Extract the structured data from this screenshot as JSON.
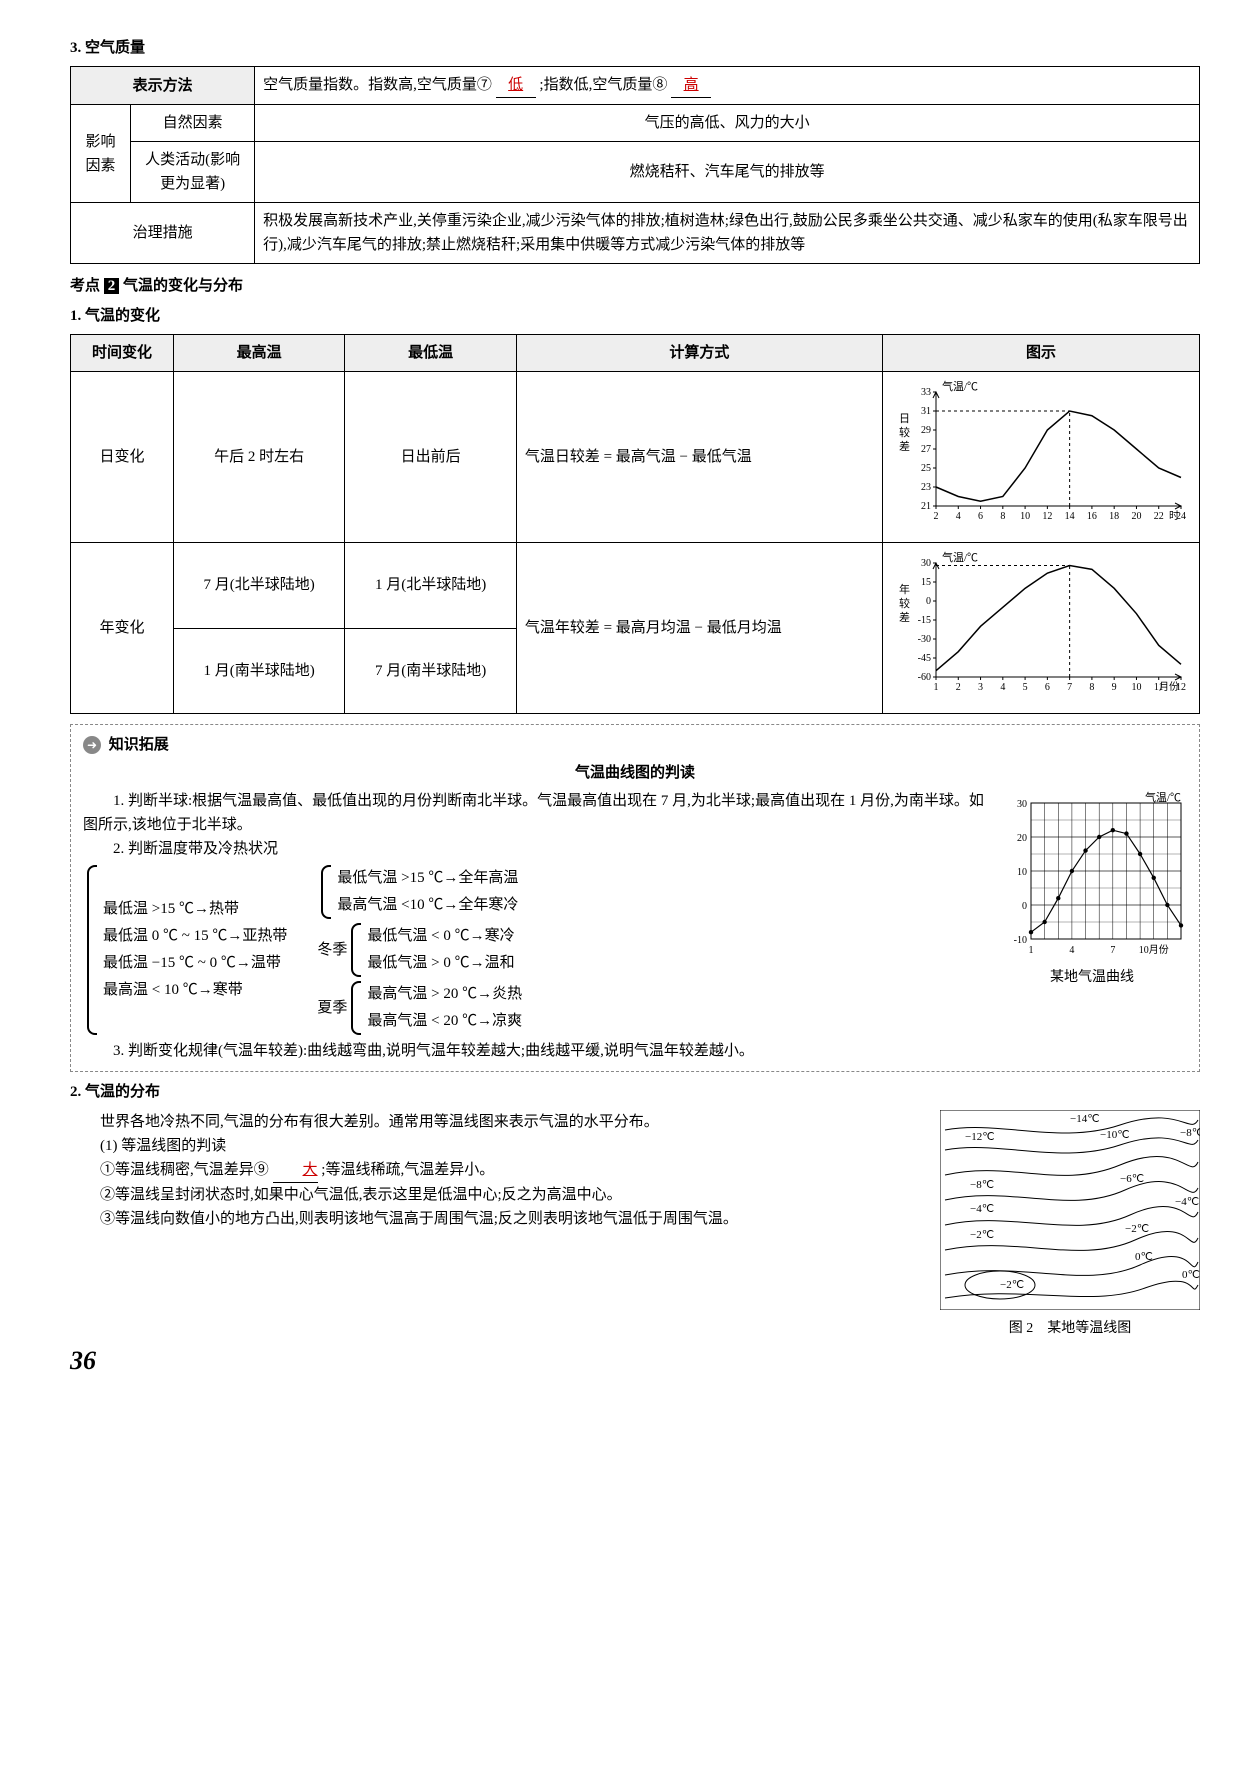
{
  "section3": {
    "title": "3. 空气质量",
    "table": {
      "headers": [
        "表示方法"
      ],
      "row1_right_prefix": "空气质量指数。指数高,空气质量⑦",
      "ans7": "低",
      "row1_right_mid": ";指数低,空气质量⑧",
      "ans8": "高",
      "factor_label": "影响因素",
      "natural_label": "自然因素",
      "natural_val": "气压的高低、风力的大小",
      "human_label": "人类活动(影响更为显著)",
      "human_val": "燃烧秸秆、汽车尾气的排放等",
      "measure_label": "治理措施",
      "measure_val": "积极发展高新技术产业,关停重污染企业,减少污染气体的排放;植树造林;绿色出行,鼓励公民多乘坐公共交通、减少私家车的使用(私家车限号出行),减少汽车尾气的排放;禁止燃烧秸秆;采用集中供暖等方式减少污染气体的排放等"
    }
  },
  "kaodian2": {
    "label_prefix": "考点",
    "num": "2",
    "title": "气温的变化与分布"
  },
  "section1": {
    "title": "1. 气温的变化",
    "headers": [
      "时间变化",
      "最高温",
      "最低温",
      "计算方式",
      "图示"
    ],
    "row_day": {
      "c1": "日变化",
      "c2": "午后 2 时左右",
      "c3": "日出前后",
      "c4": "气温日较差 = 最高气温 − 最低气温"
    },
    "row_year": {
      "c1": "年变化",
      "c2a": "7 月(北半球陆地)",
      "c3a": "1 月(北半球陆地)",
      "c2b": "1 月(南半球陆地)",
      "c3b": "7 月(南半球陆地)",
      "c4": "气温年较差 = 最高月均温 − 最低月均温"
    },
    "chart_day": {
      "type": "line",
      "ylabel_side": "日较差",
      "axis_title": "气温/℃",
      "xlabel_suffix": "时",
      "x": [
        2,
        4,
        6,
        8,
        10,
        12,
        14,
        16,
        18,
        20,
        22,
        24
      ],
      "y": [
        23,
        22,
        21.5,
        22,
        25,
        29,
        31,
        30.5,
        29,
        27,
        25,
        24
      ],
      "ylim": [
        21,
        33
      ],
      "yticks": [
        21,
        23,
        25,
        27,
        29,
        31,
        33
      ],
      "line_color": "#000",
      "grid_color": "#aaa",
      "bg": "#fff",
      "dash_x": 14,
      "dash_y": 31,
      "font_size": 10
    },
    "chart_year": {
      "type": "line",
      "ylabel_side": "年较差",
      "axis_title": "气温/℃",
      "xlabel_suffix": "月份",
      "x": [
        1,
        2,
        3,
        4,
        5,
        6,
        7,
        8,
        9,
        10,
        11,
        12
      ],
      "y": [
        -55,
        -40,
        -20,
        -5,
        10,
        22,
        28,
        25,
        10,
        -10,
        -35,
        -50
      ],
      "ylim": [
        -60,
        30
      ],
      "yticks": [
        -60,
        -45,
        -30,
        -15,
        0,
        15,
        30
      ],
      "line_color": "#000",
      "grid_color": "#aaa",
      "bg": "#fff",
      "dash_x": 7,
      "dash_y": 28,
      "font_size": 10
    }
  },
  "zstz": {
    "badge": "知识拓展",
    "title": "气温曲线图的判读",
    "p1": "1. 判断半球:根据气温最高值、最低值出现的月份判断南北半球。气温最高值出现在 7 月,为北半球;最高值出现在 1 月份,为南半球。如图所示,该地位于北半球。",
    "p2": "2. 判断温度带及冷热状况",
    "groupA": [
      "最低温 >15 ℃→热带",
      "最低温 0 ℃ ~ 15 ℃→亚热带",
      "最低温 −15 ℃ ~ 0 ℃→温带",
      "最高温 < 10 ℃→寒带"
    ],
    "groupB_top": [
      "最低气温 >15 ℃→全年高温",
      "最高气温 <10 ℃→全年寒冷"
    ],
    "winter_label": "冬季",
    "groupB_winter": [
      "最低气温 < 0 ℃→寒冷",
      "最低气温 > 0 ℃→温和"
    ],
    "summer_label": "夏季",
    "groupB_summer": [
      "最高气温 > 20 ℃→炎热",
      "最高气温 < 20 ℃→凉爽"
    ],
    "p3": "3. 判断变化规律(气温年较差):曲线越弯曲,说明气温年较差越大;曲线越平缓,说明气温年较差越小。",
    "mini_chart": {
      "type": "line",
      "axis_title": "气温/℃",
      "x": [
        1,
        4,
        7,
        10
      ],
      "xticks_label": [
        "1",
        "4",
        "7",
        "10月份"
      ],
      "y_points_x": [
        1,
        2,
        3,
        4,
        5,
        6,
        7,
        8,
        9,
        10,
        11,
        12
      ],
      "y_points_y": [
        -8,
        -5,
        2,
        10,
        16,
        20,
        22,
        21,
        15,
        8,
        0,
        -6
      ],
      "ylim": [
        -10,
        30
      ],
      "yticks": [
        -10,
        0,
        10,
        20,
        30
      ],
      "grid_color": "#000",
      "bg": "#fff",
      "marker": "dot",
      "caption": "某地气温曲线"
    }
  },
  "section2": {
    "title": "2. 气温的分布",
    "p1": "世界各地冷热不同,气温的分布有很大差别。通常用等温线图来表示气温的水平分布。",
    "sub1": "(1) 等温线图的判读",
    "line1_pre": "①等温线稠密,气温差异⑨",
    "ans9": "大",
    "line1_post": ";等温线稀疏,气温差异小。",
    "line2": "②等温线呈封闭状态时,如果中心气温低,表示这里是低温中心;反之为高温中心。",
    "line3": "③等温线向数值小的地方凸出,则表明该地气温高于周围气温;反之则表明该地气温低于周围气温。",
    "fig_caption": "图 2　某地等温线图",
    "isoline_labels": [
      "−14℃",
      "−12℃",
      "−10℃",
      "−8℃",
      "−8℃",
      "−6℃",
      "−4℃",
      "−4℃",
      "−2℃",
      "−2℃",
      "0℃",
      "0℃",
      "−2℃"
    ]
  },
  "page_number": "36"
}
